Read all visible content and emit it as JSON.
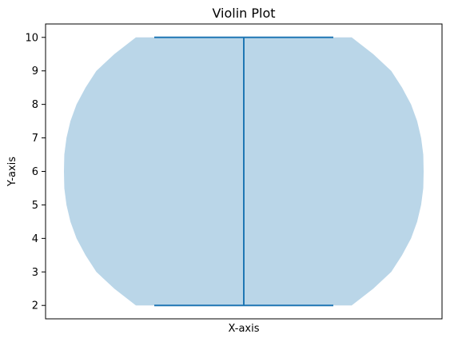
{
  "chart_data": {
    "type": "violin",
    "title": "Violin Plot",
    "xlabel": "X-axis",
    "ylabel": "Y-axis",
    "ylim": [
      1.6,
      10.4
    ],
    "yticks": [
      2,
      3,
      4,
      5,
      6,
      7,
      8,
      9,
      10
    ],
    "grid": false,
    "legend": "none",
    "series": [
      {
        "min": 2,
        "max": 10,
        "center": 6,
        "density_profile": [
          {
            "y": 2,
            "half_width": 0.3
          },
          {
            "y": 2.5,
            "half_width": 0.36
          },
          {
            "y": 3,
            "half_width": 0.41
          },
          {
            "y": 3.5,
            "half_width": 0.44
          },
          {
            "y": 4,
            "half_width": 0.465
          },
          {
            "y": 4.5,
            "half_width": 0.482
          },
          {
            "y": 5,
            "half_width": 0.493
          },
          {
            "y": 5.5,
            "half_width": 0.499
          },
          {
            "y": 6,
            "half_width": 0.5
          },
          {
            "y": 6.5,
            "half_width": 0.499
          },
          {
            "y": 7,
            "half_width": 0.493
          },
          {
            "y": 7.5,
            "half_width": 0.482
          },
          {
            "y": 8,
            "half_width": 0.465
          },
          {
            "y": 8.5,
            "half_width": 0.44
          },
          {
            "y": 9,
            "half_width": 0.41
          },
          {
            "y": 9.5,
            "half_width": 0.36
          },
          {
            "y": 10,
            "half_width": 0.3
          }
        ]
      }
    ],
    "colors": {
      "body": "#bad6e8",
      "line": "#1f77b4",
      "axis": "#000000",
      "text": "#000000"
    }
  }
}
